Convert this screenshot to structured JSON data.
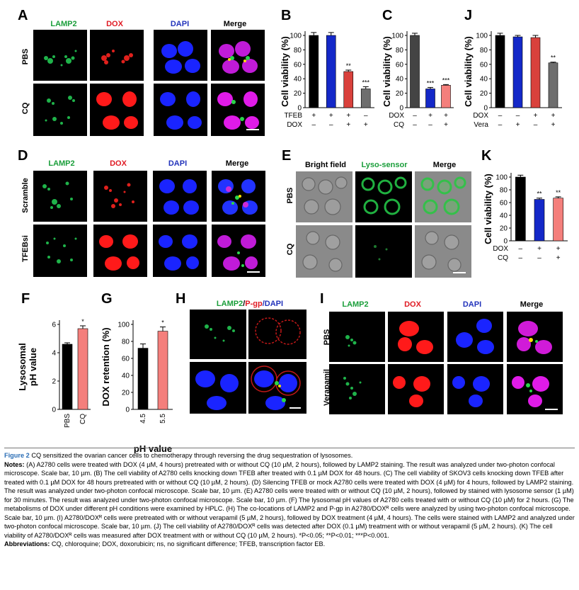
{
  "panels": {
    "A": {
      "letter": "A",
      "channels": [
        "LAMP2",
        "DOX",
        "DAPI",
        "Merge"
      ],
      "rows": [
        "PBS",
        "CQ"
      ]
    },
    "B": {
      "letter": "B"
    },
    "C": {
      "letter": "C"
    },
    "J": {
      "letter": "J"
    },
    "D": {
      "letter": "D",
      "channels": [
        "LAMP2",
        "DOX",
        "DAPI",
        "Merge"
      ],
      "rows": [
        "Scramble",
        "TFEBsi"
      ]
    },
    "E": {
      "letter": "E",
      "channels": [
        "Bright field",
        "Lyso-sensor",
        "Merge"
      ],
      "rows": [
        "PBS",
        "CQ"
      ]
    },
    "K": {
      "letter": "K"
    },
    "F": {
      "letter": "F"
    },
    "G": {
      "letter": "G"
    },
    "H": {
      "letter": "H",
      "title_parts": [
        "LAMP2",
        "/",
        "P-gp",
        "/DAPI"
      ]
    },
    "I": {
      "letter": "I",
      "channels": [
        "LAMP2",
        "DOX",
        "DAPI",
        "Merge"
      ],
      "rows": [
        "PBS",
        "Verapamil"
      ]
    }
  },
  "colors": {
    "lamp2": "#1a9e3a",
    "dox": "#e01b24",
    "dapi": "#2233bb",
    "black_bar": "#000000",
    "blue_bar": "#1428c8",
    "red_bar": "#d9413c",
    "grey_bar": "#6e6e6e",
    "pink_bar": "#f47f7c"
  },
  "chart_data": [
    {
      "panel": "B",
      "type": "bar",
      "ylabel": "Cell viability (%)",
      "ylim": [
        0,
        100
      ],
      "yticks": [
        0,
        20,
        40,
        60,
        80,
        100
      ],
      "values": [
        100,
        100,
        50,
        26
      ],
      "errors": [
        4,
        4,
        2,
        3
      ],
      "bar_colors": [
        "#000000",
        "#1428c8",
        "#d9413c",
        "#6e6e6e"
      ],
      "sig": [
        "",
        "",
        "**",
        "***"
      ],
      "conditions": [
        {
          "label": "TFEB",
          "signs": [
            "+",
            "+",
            "+",
            "–"
          ]
        },
        {
          "label": "DOX",
          "signs": [
            "–",
            "–",
            "+",
            "+"
          ]
        }
      ]
    },
    {
      "panel": "C",
      "type": "bar",
      "ylabel": "Cell viability (%)",
      "ylim": [
        0,
        100
      ],
      "yticks": [
        0,
        20,
        40,
        60,
        80,
        100
      ],
      "values": [
        100,
        26,
        31
      ],
      "errors": [
        3,
        2,
        1
      ],
      "bar_colors": [
        "#444444",
        "#1428c8",
        "#f47f7c"
      ],
      "sig": [
        "",
        "***",
        "***"
      ],
      "conditions": [
        {
          "label": "DOX",
          "signs": [
            "–",
            "+",
            "+"
          ]
        },
        {
          "label": "CQ",
          "signs": [
            "–",
            "–",
            "+"
          ]
        }
      ]
    },
    {
      "panel": "J",
      "type": "bar",
      "ylabel": "Cell viability (%)",
      "ylim": [
        0,
        100
      ],
      "yticks": [
        0,
        20,
        40,
        60,
        80,
        100
      ],
      "values": [
        100,
        98,
        97,
        62
      ],
      "errors": [
        3,
        2,
        3,
        1
      ],
      "bar_colors": [
        "#000000",
        "#1428c8",
        "#d9413c",
        "#6e6e6e"
      ],
      "sig": [
        "",
        "",
        "",
        "**"
      ],
      "conditions": [
        {
          "label": "DOX",
          "signs": [
            "–",
            "–",
            "+",
            "+"
          ]
        },
        {
          "label": "Vera",
          "signs": [
            "–",
            "+",
            "–",
            "+"
          ]
        }
      ]
    },
    {
      "panel": "K",
      "type": "bar",
      "ylabel": "Cell viability (%)",
      "ylim": [
        0,
        100
      ],
      "yticks": [
        0,
        20,
        40,
        60,
        80,
        100
      ],
      "values": [
        100,
        65,
        67
      ],
      "errors": [
        3,
        2,
        2
      ],
      "bar_colors": [
        "#000000",
        "#1428c8",
        "#f47f7c"
      ],
      "sig": [
        "",
        "**",
        "**"
      ],
      "conditions": [
        {
          "label": "DOX",
          "signs": [
            "–",
            "+",
            "+"
          ]
        },
        {
          "label": "CQ",
          "signs": [
            "–",
            "–",
            "+"
          ]
        }
      ]
    },
    {
      "panel": "F",
      "type": "bar",
      "ylabel": "Lysosomal\npH value",
      "ylim": [
        0,
        6
      ],
      "yticks": [
        0,
        2,
        4,
        6
      ],
      "categories": [
        "PBS",
        "CQ"
      ],
      "values": [
        4.6,
        5.7
      ],
      "errors": [
        0.1,
        0.2
      ],
      "bar_colors": [
        "#000000",
        "#f47f7c"
      ],
      "sig": [
        "",
        "*"
      ]
    },
    {
      "panel": "G",
      "type": "bar",
      "ylabel": "DOX retention (%)",
      "xlabel": "pH value",
      "ylim": [
        0,
        100
      ],
      "yticks": [
        0,
        20,
        40,
        60,
        80,
        100
      ],
      "categories": [
        "4.5",
        "5.5"
      ],
      "values": [
        72,
        92
      ],
      "errors": [
        5,
        5
      ],
      "bar_colors": [
        "#000000",
        "#f47f7c"
      ],
      "sig": [
        "",
        "*"
      ]
    }
  ],
  "caption": {
    "figure_label": "Figure 2",
    "title": "CQ sensitized the ovarian cancer cells to chemotherapy through reversing the drug sequestration of lysosomes.",
    "notes_label": "Notes:",
    "notes": "(A) A2780 cells were treated with DOX (4 µM, 4 hours) pretreated with or without CQ (10 µM, 2 hours), followed by LAMP2 staining. The result was analyzed under two-photon confocal microscope. Scale bar, 10 µm. (B) The cell viability of A2780 cells knocking down TFEB after treated with 0.1 µM DOX for 48 hours. (C) The cell viability of SKOV3 cells knocking down TFEB after treated with 0.1 µM DOX for 48 hours pretreated with or without CQ (10 µM, 2 hours). (D) Silencing TFEB or mock A2780 cells were treated with DOX (4 µM) for 4 hours, followed by LAMP2 staining. The result was analyzed under two-photon confocal microscope. Scale bar, 10 µm. (E) A2780 cells were treated with or without CQ (10 µM, 2 hours), followed by stained with lysosome sensor (1 µM) for 30 minutes. The result was analyzed under two-photon confocal microscope. Scale bar, 10 µm. (F) The lysosomal pH values of A2780 cells treated with or without CQ (10 µM) for 2 hours. (G) The metabolisms of DOX under different pH conditions were examined by HPLC. (H) The co-locations of LAMP2 and P-gp in A2780/DOXᴿ cells were analyzed by using two-photon confocal microscope. Scale bar, 10 µm. (I) A2780/DOXᴿ cells were pretreated with or without verapamil (5 µM, 2 hours), followed by DOX treatment (4 µM, 4 hours). The cells were stained with LAMP2 and analyzed under two-photon confocal microscope. Scale bar, 10 µm. (J) The cell viability of A2780/DOXᴿ cells was detected after DOX (0.1 µM) treatment with or without verapamil (5 µM, 2 hours). (K) The cell viability of A2780/DOXᴿ cells was measured after DOX treatment with or without CQ (10 µM, 2 hours). *P<0.05; **P<0.01; ***P<0.001.",
    "abbrev_label": "Abbreviations:",
    "abbrev": "CQ, chloroquine; DOX, doxorubicin; ns, no significant difference; TFEB, transcription factor EB."
  }
}
